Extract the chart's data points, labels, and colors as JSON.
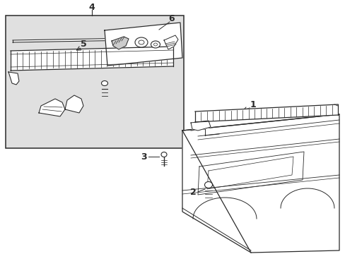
{
  "bg_color": "#ffffff",
  "box_bg": "#e0e0e0",
  "line_color": "#2a2a2a",
  "label_color": "#000000",
  "inner_box_bg": "#ffffff",
  "figsize": [
    4.89,
    3.6
  ],
  "dpi": 100
}
